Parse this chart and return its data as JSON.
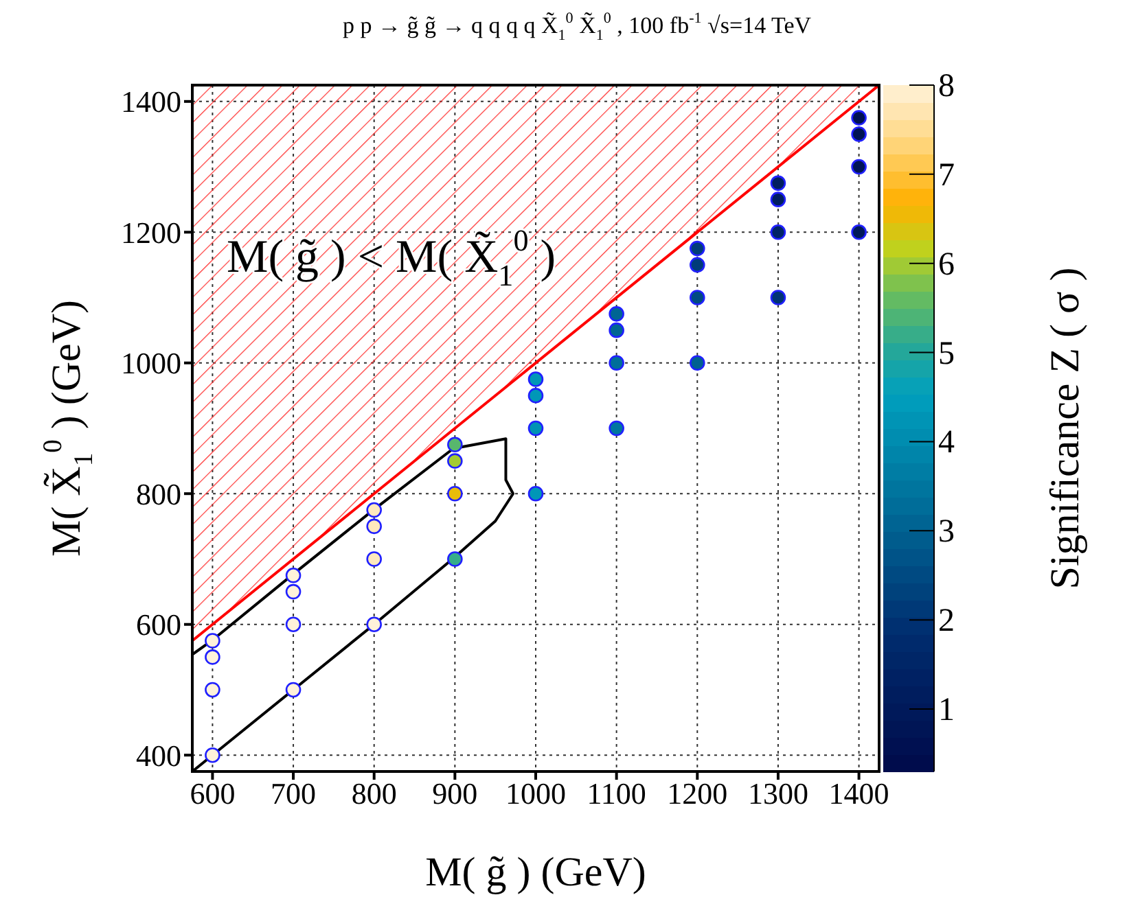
{
  "chart_data": {
    "type": "scatter",
    "title": "p p → g̃ g̃ →  q q q q X̃$_{1}$$^{0}$ X̃$_{1}$$^{0}$ ,  100 fb$^{-1}$ √s=14 TeV",
    "xlabel": "M( g̃ )    (GeV)",
    "ylabel": "M( X̃$_{1}$$^{0}$ )    (GeV)",
    "clabel": "Significance Z  ( σ )",
    "annotations": [
      "M( g̃ ) < M( X̃$_{1}$$^{0}$ )"
    ],
    "xlim": [
      575,
      1425
    ],
    "xticks": [
      600,
      700,
      800,
      900,
      1000,
      1100,
      1200,
      1300,
      1400
    ],
    "ylim": [
      375,
      1425
    ],
    "yticks": [
      400,
      600,
      800,
      1000,
      1200,
      1400
    ],
    "clim": [
      0.3,
      8
    ],
    "cticks": [
      1,
      2,
      3,
      4,
      5,
      6,
      7,
      8
    ],
    "grid": true,
    "marker": "circle",
    "series": [
      {
        "color": "#2020ff",
        "x": [
          600,
          600,
          600,
          600,
          700,
          700,
          700,
          700,
          800,
          800,
          800,
          800,
          900,
          900,
          900,
          900,
          1000,
          1000,
          1000,
          1000,
          1100,
          1100,
          1100,
          1100,
          1200,
          1200,
          1200,
          1200,
          1300,
          1300,
          1300,
          1300,
          1400,
          1400,
          1400,
          1400
        ],
        "values": [
          400,
          500,
          550,
          575,
          500,
          600,
          650,
          675,
          600,
          700,
          750,
          775,
          700,
          800,
          850,
          875,
          800,
          900,
          950,
          975,
          900,
          1000,
          1050,
          1075,
          1000,
          1100,
          1150,
          1175,
          1100,
          1200,
          1250,
          1275,
          1200,
          1300,
          1350,
          1375
        ],
        "cvalues": [
          8,
          8,
          8,
          8,
          8,
          8,
          8,
          8,
          8,
          7.8,
          7.8,
          7.8,
          5.2,
          6.5,
          6,
          5.5,
          4.3,
          4.2,
          4.3,
          4.3,
          3.5,
          3.3,
          3.1,
          3.1,
          3,
          2.5,
          2.2,
          2.2,
          2,
          1.5,
          1.2,
          1.2,
          1,
          0.8,
          0.7,
          0.6
        ]
      },
      {
        "type": "line",
        "color": "#ff0000",
        "line_style": "solid",
        "marker": "none",
        "x": [
          575,
          1425
        ],
        "values": [
          575,
          1425
        ],
        "lower": [
          575,
          1425
        ],
        "upper": [
          1425,
          1425
        ]
      },
      {
        "type": "line",
        "color": "#000000",
        "line_style": "solid",
        "marker": "none",
        "x": [
          575,
          600,
          700,
          800,
          898,
          963,
          963,
          972,
          950,
          898,
          800,
          700,
          600,
          575
        ],
        "values": [
          554,
          576,
          677,
          776,
          869,
          884,
          821,
          800,
          758,
          701,
          600,
          500,
          400,
          375
        ]
      }
    ]
  }
}
